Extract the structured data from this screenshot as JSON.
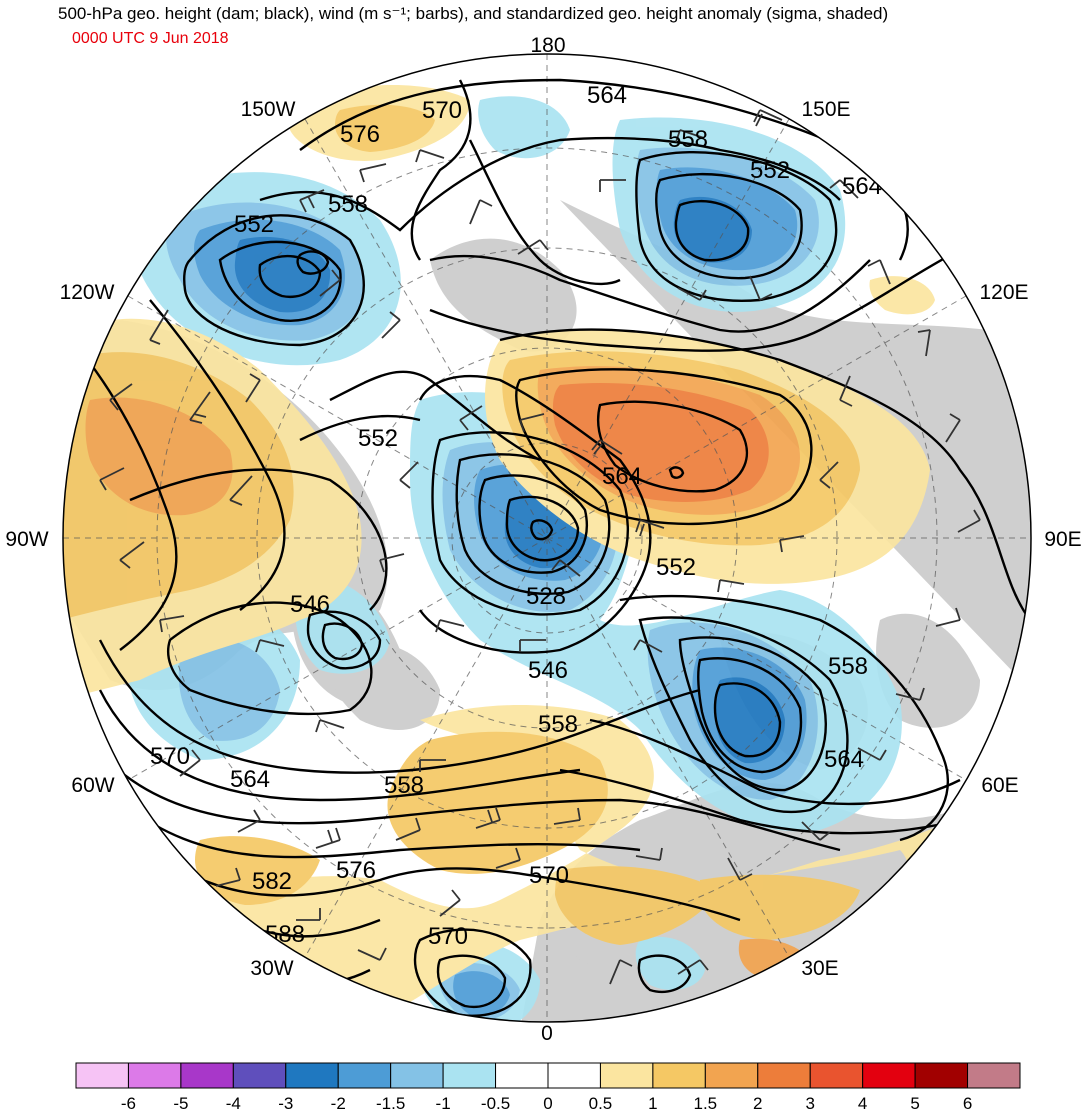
{
  "header": {
    "title": "500-hPa geo. height (dam; black), wind (m s⁻¹; barbs), and standardized geo. height anomaly (sigma, shaded)",
    "valid_time": "0000 UTC 9 Jun 2018"
  },
  "map": {
    "projection": "north-polar-stereographic",
    "longitude_labels": [
      "180",
      "150E",
      "120E",
      "90E",
      "60E",
      "30E",
      "0",
      "30W",
      "60W",
      "90W",
      "120W",
      "150W"
    ],
    "height_contour_labels": [
      "564",
      "570",
      "576",
      "558",
      "552",
      "564",
      "552",
      "558",
      "552",
      "564",
      "552",
      "528",
      "546",
      "546",
      "558",
      "558",
      "564",
      "570",
      "564",
      "558",
      "576",
      "582",
      "588",
      "570",
      "570"
    ],
    "anomaly_colors": {
      "strong_neg": "#1f78c0",
      "mid_neg": "#4d9cd6",
      "weak_neg": "#84c2e6",
      "faint_neg": "#aae3f1",
      "faint_pos": "#fbe5a0",
      "weak_pos": "#f5c864",
      "mid_pos": "#f2a450",
      "strong_pos": "#ed7d3a",
      "land": "#cfcfcf",
      "ocean": "#ffffff"
    }
  },
  "colorbar": {
    "ticks": [
      "-6",
      "-5",
      "-4",
      "-3",
      "-2",
      "-1.5",
      "-1",
      "-0.5",
      "0",
      "0.5",
      "1",
      "1.5",
      "2",
      "3",
      "4",
      "5",
      "6"
    ],
    "colors": [
      "#f6c3f5",
      "#dc7ae8",
      "#a837c9",
      "#5f4fbc",
      "#1f78c0",
      "#4d9cd6",
      "#84c2e6",
      "#aae3f1",
      "#ffffff",
      "#ffffff",
      "#fbe5a0",
      "#f5c864",
      "#f2a450",
      "#ed7d3a",
      "#e9542f",
      "#e3000f",
      "#a10000",
      "#c27b88"
    ]
  }
}
